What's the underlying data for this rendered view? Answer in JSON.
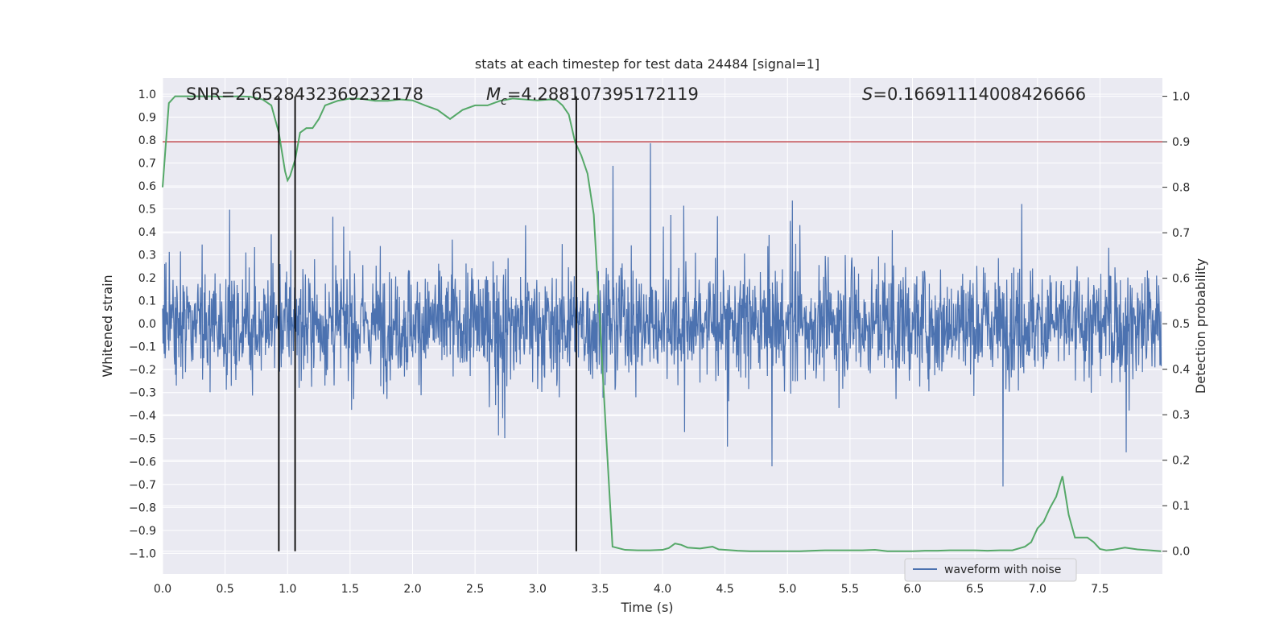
{
  "chart_data": {
    "type": "line",
    "title": "stats at each timestep for test data 24484 [signal=1]",
    "xlabel": "Time (s)",
    "ylabel": "Whitened strain",
    "ylabel_right": "Detection probability",
    "xlim": [
      0.0,
      8.0
    ],
    "ylim": [
      -1.09,
      1.07
    ],
    "ylim_right": [
      -0.05,
      1.04
    ],
    "x_ticks": [
      "0.0",
      "0.5",
      "1.0",
      "1.5",
      "2.0",
      "2.5",
      "3.0",
      "3.5",
      "4.0",
      "4.5",
      "5.0",
      "5.5",
      "6.0",
      "6.5",
      "7.0",
      "7.5"
    ],
    "y_ticks": [
      "−1.0",
      "−0.9",
      "−0.8",
      "−0.7",
      "−0.6",
      "−0.5",
      "−0.4",
      "−0.3",
      "−0.2",
      "−0.1",
      "0.0",
      "0.1",
      "0.2",
      "0.3",
      "0.4",
      "0.5",
      "0.6",
      "0.7",
      "0.8",
      "0.9",
      "1.0"
    ],
    "y_right_ticks": [
      "0.0",
      "0.1",
      "0.2",
      "0.3",
      "0.4",
      "0.5",
      "0.6",
      "0.7",
      "0.8",
      "0.9",
      "1.0"
    ],
    "annotations": {
      "snr": "SNR=2.6528432369232178",
      "mc_symbol": "M",
      "mc_sub": "c",
      "mc_value": "=4.288107395172119",
      "s_symbol": "S",
      "s_value": "=0.16691114008426666"
    },
    "threshold": {
      "value": 0.9,
      "axis": "right",
      "color": "#c44e52"
    },
    "vertical_lines_x": [
      0.93,
      1.06,
      3.31
    ],
    "waveform": {
      "name": "waveform with noise",
      "color": "#4c72b0",
      "note": "dense noisy strain series, core amplitude about ±0.3 with spikes to about ±0.95"
    },
    "series": [
      {
        "name": "detection probability",
        "color": "#55a868",
        "axis": "right",
        "x": [
          0.0,
          0.05,
          0.1,
          0.2,
          0.3,
          0.4,
          0.5,
          0.6,
          0.7,
          0.8,
          0.87,
          0.93,
          0.98,
          1.0,
          1.02,
          1.06,
          1.1,
          1.15,
          1.2,
          1.25,
          1.3,
          1.4,
          1.5,
          1.6,
          1.7,
          1.8,
          1.9,
          2.0,
          2.1,
          2.2,
          2.3,
          2.4,
          2.5,
          2.6,
          2.7,
          2.8,
          2.9,
          3.0,
          3.1,
          3.15,
          3.2,
          3.25,
          3.3,
          3.35,
          3.4,
          3.45,
          3.5,
          3.55,
          3.6,
          3.7,
          3.8,
          3.9,
          4.0,
          4.05,
          4.1,
          4.15,
          4.2,
          4.3,
          4.4,
          4.45,
          4.5,
          4.6,
          4.7,
          4.8,
          4.9,
          5.0,
          5.1,
          5.2,
          5.3,
          5.4,
          5.5,
          5.6,
          5.7,
          5.8,
          5.9,
          6.0,
          6.1,
          6.2,
          6.3,
          6.4,
          6.5,
          6.6,
          6.7,
          6.8,
          6.9,
          6.95,
          7.0,
          7.05,
          7.1,
          7.15,
          7.2,
          7.25,
          7.3,
          7.35,
          7.4,
          7.45,
          7.5,
          7.55,
          7.6,
          7.7,
          7.8,
          7.9,
          7.99
        ],
        "values": [
          0.8,
          0.985,
          1.0,
          1.0,
          1.0,
          1.0,
          0.999,
          1.0,
          0.999,
          0.993,
          0.98,
          0.92,
          0.835,
          0.815,
          0.825,
          0.86,
          0.92,
          0.93,
          0.93,
          0.95,
          0.98,
          0.99,
          0.995,
          0.994,
          0.99,
          0.99,
          0.993,
          0.991,
          0.98,
          0.97,
          0.95,
          0.97,
          0.98,
          0.98,
          0.99,
          0.995,
          0.993,
          0.991,
          0.993,
          0.992,
          0.98,
          0.96,
          0.9,
          0.87,
          0.83,
          0.74,
          0.5,
          0.25,
          0.01,
          0.003,
          0.002,
          0.002,
          0.003,
          0.007,
          0.017,
          0.014,
          0.008,
          0.006,
          0.01,
          0.004,
          0.003,
          0.001,
          0.0,
          0.0,
          0.0,
          0.0,
          0.0,
          0.001,
          0.002,
          0.002,
          0.002,
          0.002,
          0.003,
          0.0,
          0.0,
          0.0,
          0.001,
          0.001,
          0.002,
          0.002,
          0.002,
          0.001,
          0.002,
          0.002,
          0.01,
          0.02,
          0.05,
          0.065,
          0.095,
          0.12,
          0.165,
          0.08,
          0.03,
          0.03,
          0.03,
          0.02,
          0.005,
          0.002,
          0.003,
          0.008,
          0.004,
          0.002,
          0.0
        ]
      }
    ],
    "legend": {
      "position": "lower-right",
      "entries": [
        "waveform with noise"
      ]
    },
    "grid": true,
    "colors": {
      "background": "#eaeaf2",
      "grid": "#ffffff",
      "axes_text": "#262626",
      "vline": "#000000"
    }
  }
}
